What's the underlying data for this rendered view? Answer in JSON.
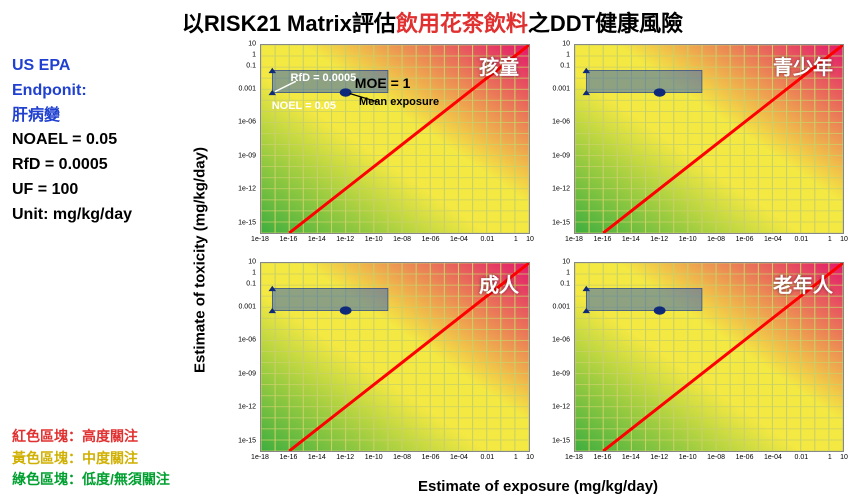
{
  "title": {
    "pre": "以RISK21 Matrix評估",
    "red": "飲用花茶飲料",
    "post": "之DDT健康風險",
    "fontsize": 22
  },
  "sidebar": {
    "l1": "US EPA",
    "l2": "Endponit:",
    "l3": "肝病變",
    "l4": "NOAEL = 0.05",
    "l5": "RfD = 0.0005",
    "l6": "UF = 100",
    "l7": "Unit: mg/kg/day",
    "color_blue": "#2040d0"
  },
  "legend": {
    "r": "紅色區塊：高度關注",
    "y": "黃色區塊：中度關注",
    "g": "綠色區塊：低度/無須關注"
  },
  "axis": {
    "xlabel": "Estimate of exposure (mg/kg/day)",
    "ylabel": "Estimate of toxicity (mg/kg/day)",
    "x_ticks": [
      "1e-18",
      "1e-16",
      "1e-14",
      "1e-12",
      "1e-10",
      "1e-08",
      "1e-06",
      "1e-04",
      "0.01",
      "1",
      "10"
    ],
    "y_ticks": [
      "10",
      "1",
      "0.1",
      "0.001",
      "1e-06",
      "1e-09",
      "1e-12",
      "1e-15"
    ],
    "xlim_log10": [
      -18,
      1
    ],
    "ylim_log10": [
      -16,
      1
    ]
  },
  "chart_style": {
    "type": "risk21-matrix",
    "diag_color": "#ff0000",
    "diag_width": 3,
    "grid_color": "#c8d068",
    "grid_stroke": 0.4,
    "color_green": "#3fae3f",
    "color_yellow": "#f4e842",
    "color_red": "#e2186b",
    "box_fill": "#3a66b7",
    "box_opacity": 0.55,
    "box_border": "#1a3a8a",
    "marker_color": "#102a7a",
    "marker_radius": 2.2
  },
  "exposure_box": {
    "x_lo_log10": -17.2,
    "x_hi_log10": -9.0,
    "y_lo_log10": -3.3,
    "y_hi_log10": -1.3,
    "rfd_log10": -3.3,
    "noel_log10": -1.3,
    "mean_x_log10": -12.0,
    "mean_y_log10": -3.3
  },
  "panels": [
    {
      "label": "孩童",
      "annotate": true
    },
    {
      "label": "青少年",
      "annotate": false
    },
    {
      "label": "成人",
      "annotate": false
    },
    {
      "label": "老年人",
      "annotate": false
    }
  ],
  "annotations": {
    "moe": "MOE = 1",
    "rfd": "RfD = 0.0005",
    "noel": "NOEL = 0.05",
    "mean": "Mean exposure"
  }
}
